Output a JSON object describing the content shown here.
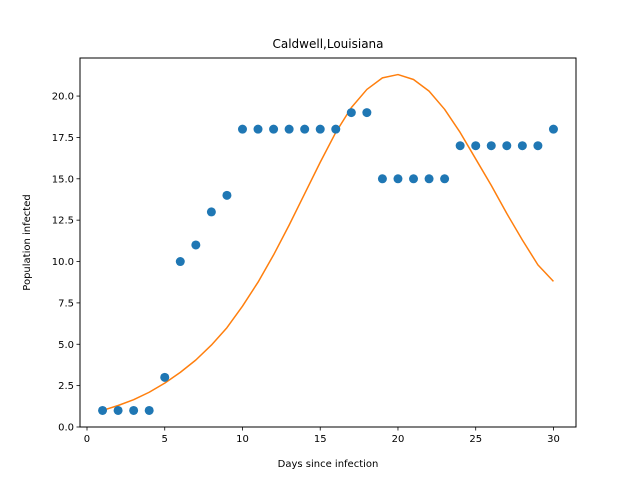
{
  "chart_data": {
    "type": "scatter",
    "title": "Caldwell,Louisiana",
    "xlabel": "Days since infection",
    "ylabel": "Population infected",
    "xlim": [
      -0.45,
      31.45
    ],
    "ylim": [
      0,
      22.3
    ],
    "xticks": [
      0,
      5,
      10,
      15,
      20,
      25,
      30
    ],
    "xtick_labels": [
      "0",
      "5",
      "10",
      "15",
      "20",
      "25",
      "30"
    ],
    "yticks": [
      0,
      2.5,
      5,
      7.5,
      10,
      12.5,
      15,
      17.5,
      20
    ],
    "ytick_labels": [
      "0.0",
      "2.5",
      "5.0",
      "7.5",
      "10.0",
      "12.5",
      "15.0",
      "17.5",
      "20.0"
    ],
    "grid": false,
    "series": [
      {
        "kind": "scatter",
        "color": "#1f77b4",
        "x": [
          1,
          2,
          3,
          4,
          5,
          6,
          7,
          8,
          9,
          10,
          11,
          12,
          13,
          14,
          15,
          16,
          17,
          18,
          19,
          20,
          21,
          22,
          23,
          24,
          25,
          26,
          27,
          28,
          29,
          30
        ],
        "y": [
          1,
          1,
          1,
          1,
          3,
          10,
          11,
          13,
          14,
          18,
          18,
          18,
          18,
          18,
          18,
          18,
          19,
          19,
          15,
          15,
          15,
          15,
          15,
          17,
          17,
          17,
          17,
          17,
          17,
          18
        ]
      },
      {
        "kind": "line",
        "color": "#ff7f0e",
        "x": [
          1,
          2,
          3,
          4,
          5,
          6,
          7,
          8,
          9,
          10,
          11,
          12,
          13,
          14,
          15,
          16,
          17,
          18,
          19,
          20,
          21,
          22,
          23,
          24,
          25,
          26,
          27,
          28,
          29,
          30
        ],
        "y": [
          1.0,
          1.3,
          1.65,
          2.1,
          2.65,
          3.3,
          4.05,
          4.95,
          6.0,
          7.3,
          8.75,
          10.4,
          12.2,
          14.1,
          16.0,
          17.8,
          19.3,
          20.4,
          21.1,
          21.3,
          21.0,
          20.3,
          19.2,
          17.8,
          16.2,
          14.6,
          12.9,
          11.3,
          9.8,
          8.8
        ]
      }
    ]
  }
}
